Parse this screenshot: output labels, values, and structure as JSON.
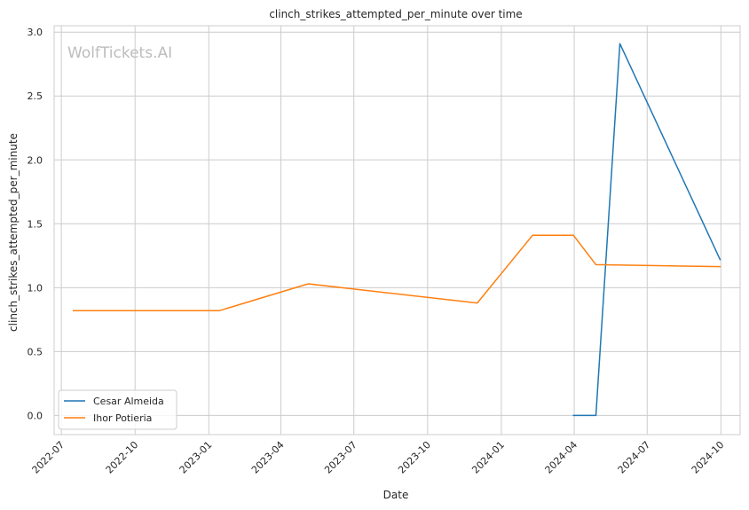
{
  "chart_data": {
    "type": "line",
    "title": "clinch_strikes_attempted_per_minute over time",
    "xlabel": "Date",
    "ylabel": "clinch_strikes_attempted_per_minute",
    "watermark": "WolfTickets.AI",
    "x_ticks": [
      "2022-07",
      "2022-10",
      "2023-01",
      "2023-04",
      "2023-07",
      "2023-10",
      "2024-01",
      "2024-04",
      "2024-07",
      "2024-10"
    ],
    "y_ticks": [
      "0.0",
      "0.5",
      "1.0",
      "1.5",
      "2.0",
      "2.5",
      "3.0"
    ],
    "xlim": [
      "2022-06-22",
      "2024-10-25"
    ],
    "ylim": [
      -0.15,
      3.05
    ],
    "grid": true,
    "legend_position": "lower-left",
    "series": [
      {
        "name": "Cesar Almeida",
        "color": "#1f77b4",
        "points": [
          {
            "x": "2024-03-31",
            "y": 0.0
          },
          {
            "x": "2024-04-28",
            "y": 0.0
          },
          {
            "x": "2024-05-28",
            "y": 2.91
          },
          {
            "x": "2024-09-30",
            "y": 1.22
          }
        ]
      },
      {
        "name": "Ihor Potieria",
        "color": "#ff7f0e",
        "points": [
          {
            "x": "2022-07-16",
            "y": 0.82
          },
          {
            "x": "2023-01-14",
            "y": 0.82
          },
          {
            "x": "2023-05-05",
            "y": 1.03
          },
          {
            "x": "2023-12-02",
            "y": 0.88
          },
          {
            "x": "2024-02-09",
            "y": 1.41
          },
          {
            "x": "2024-03-31",
            "y": 1.41
          },
          {
            "x": "2024-04-28",
            "y": 1.18
          },
          {
            "x": "2024-09-30",
            "y": 1.165
          }
        ]
      }
    ]
  }
}
